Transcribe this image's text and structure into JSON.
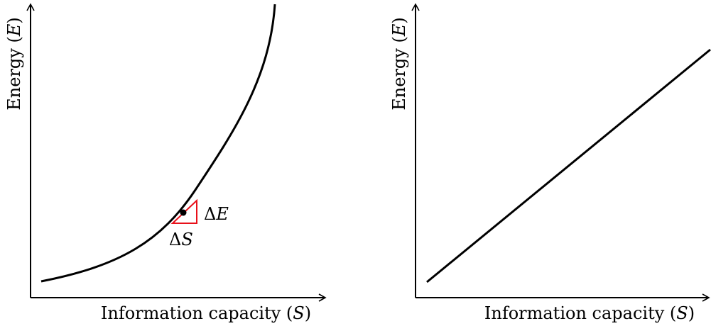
{
  "panels": [
    {
      "id": "left",
      "xlabel": {
        "text": "Information capacity (",
        "var": "S",
        "close": ")"
      },
      "ylabel": {
        "text": "Energy (",
        "var": "E",
        "close": ")"
      },
      "curve_type": "convex-increasing",
      "annotations": {
        "delta_e": {
          "delta": "Δ",
          "var": "E"
        },
        "delta_s": {
          "delta": "Δ",
          "var": "S"
        }
      },
      "colors": {
        "curve": "#000000",
        "triangle": "#e8101a"
      }
    },
    {
      "id": "right",
      "xlabel": {
        "text": "Information capacity (",
        "var": "S",
        "close": ")"
      },
      "ylabel": {
        "text": "Energy (",
        "var": "E",
        "close": ")"
      },
      "curve_type": "linear-increasing",
      "colors": {
        "curve": "#000000"
      }
    }
  ]
}
